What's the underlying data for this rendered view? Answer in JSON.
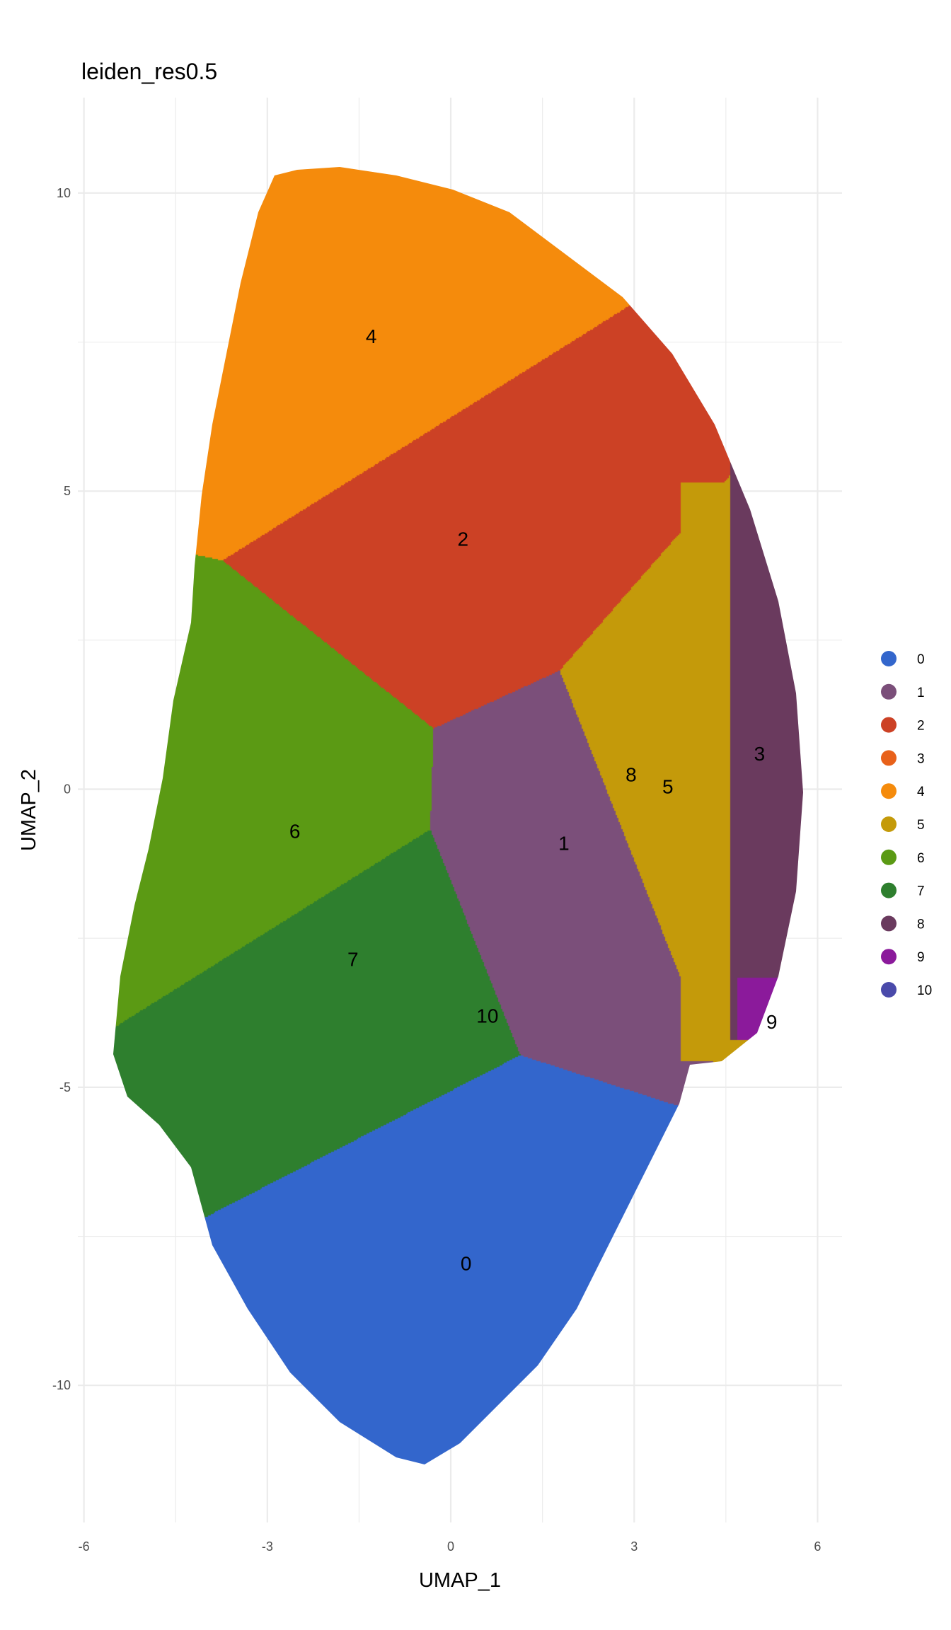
{
  "chart_data": {
    "type": "scatter",
    "title": "leiden_res0.5",
    "xlabel": "UMAP_1",
    "ylabel": "UMAP_2",
    "xlim": [
      -6.1,
      6.4
    ],
    "ylim": [
      -12.3,
      11.6
    ],
    "x_ticks": [
      -6,
      -3,
      0,
      3,
      6
    ],
    "y_ticks": [
      -10,
      -5,
      0,
      5,
      10
    ],
    "grid": true,
    "legend_position": "right",
    "clusters": [
      {
        "name": "0",
        "color": "#3366cc",
        "label_x": 0.25,
        "label_y": -7.95
      },
      {
        "name": "1",
        "color": "#7b4f7a",
        "label_x": 1.85,
        "label_y": -0.9
      },
      {
        "name": "2",
        "color": "#cc4125",
        "label_x": 0.2,
        "label_y": 4.2
      },
      {
        "name": "3",
        "color": "#e8611a",
        "label_x": 5.05,
        "label_y": 0.6
      },
      {
        "name": "4",
        "color": "#f58b0c",
        "label_x": -1.3,
        "label_y": 7.6
      },
      {
        "name": "5",
        "color": "#c49a0a",
        "label_x": 3.55,
        "label_y": 0.05
      },
      {
        "name": "6",
        "color": "#5b9a14",
        "label_x": -2.55,
        "label_y": -0.7
      },
      {
        "name": "7",
        "color": "#2e7f2e",
        "label_x": -1.6,
        "label_y": -2.85
      },
      {
        "name": "8",
        "color": "#6a3a5e",
        "label_x": 2.95,
        "label_y": 0.25
      },
      {
        "name": "9",
        "color": "#8b1a9b",
        "label_x": 5.25,
        "label_y": -3.9
      },
      {
        "name": "10",
        "color": "#4a4aaa",
        "label_x": 0.6,
        "label_y": -3.8
      }
    ]
  }
}
